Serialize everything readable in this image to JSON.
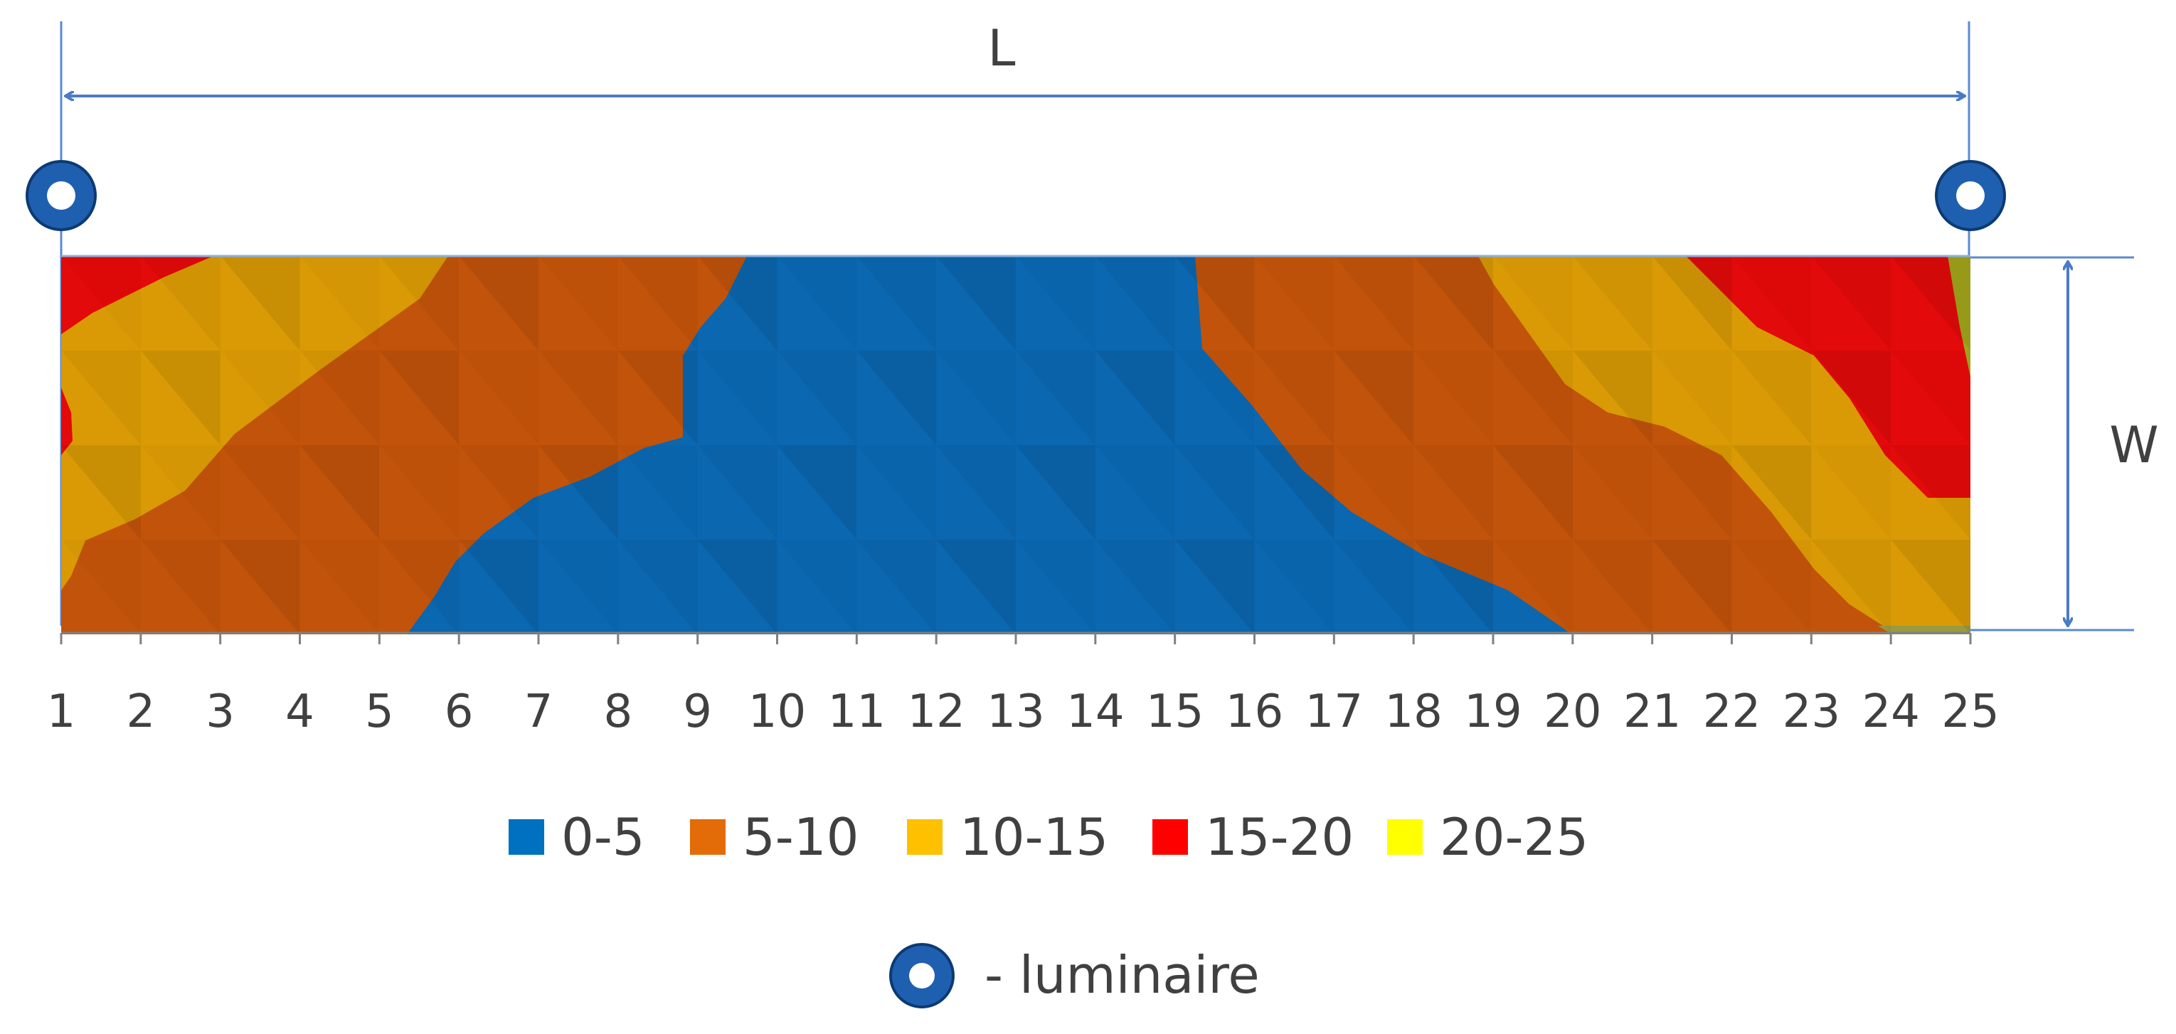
{
  "chart_data": {
    "type": "heatmap",
    "title": "",
    "xlabel": "",
    "ylabel": "",
    "x_ticks": [
      "1",
      "2",
      "3",
      "4",
      "5",
      "6",
      "7",
      "8",
      "9",
      "10",
      "11",
      "12",
      "13",
      "14",
      "15",
      "16",
      "17",
      "18",
      "19",
      "20",
      "21",
      "22",
      "23",
      "24",
      "25"
    ],
    "dimension_labels": {
      "length": "L",
      "width": "W"
    },
    "legend": [
      {
        "label": "0-5",
        "color": "#0070c0"
      },
      {
        "label": "5-10",
        "color": "#e36c09"
      },
      {
        "label": "10-15",
        "color": "#ffc000"
      },
      {
        "label": "15-20",
        "color": "#ff0000"
      },
      {
        "label": "20-25",
        "color": "#ffff00"
      }
    ],
    "luminaire_legend": "- luminaire",
    "luminaire_positions": [
      1,
      25
    ],
    "band_colors": {
      "0-5": "#0b67b0",
      "5-10": "#c2530a",
      "10-15": "#d99a05",
      "15-20": "#e20a0a",
      "20-25": "#a3a61a"
    }
  }
}
